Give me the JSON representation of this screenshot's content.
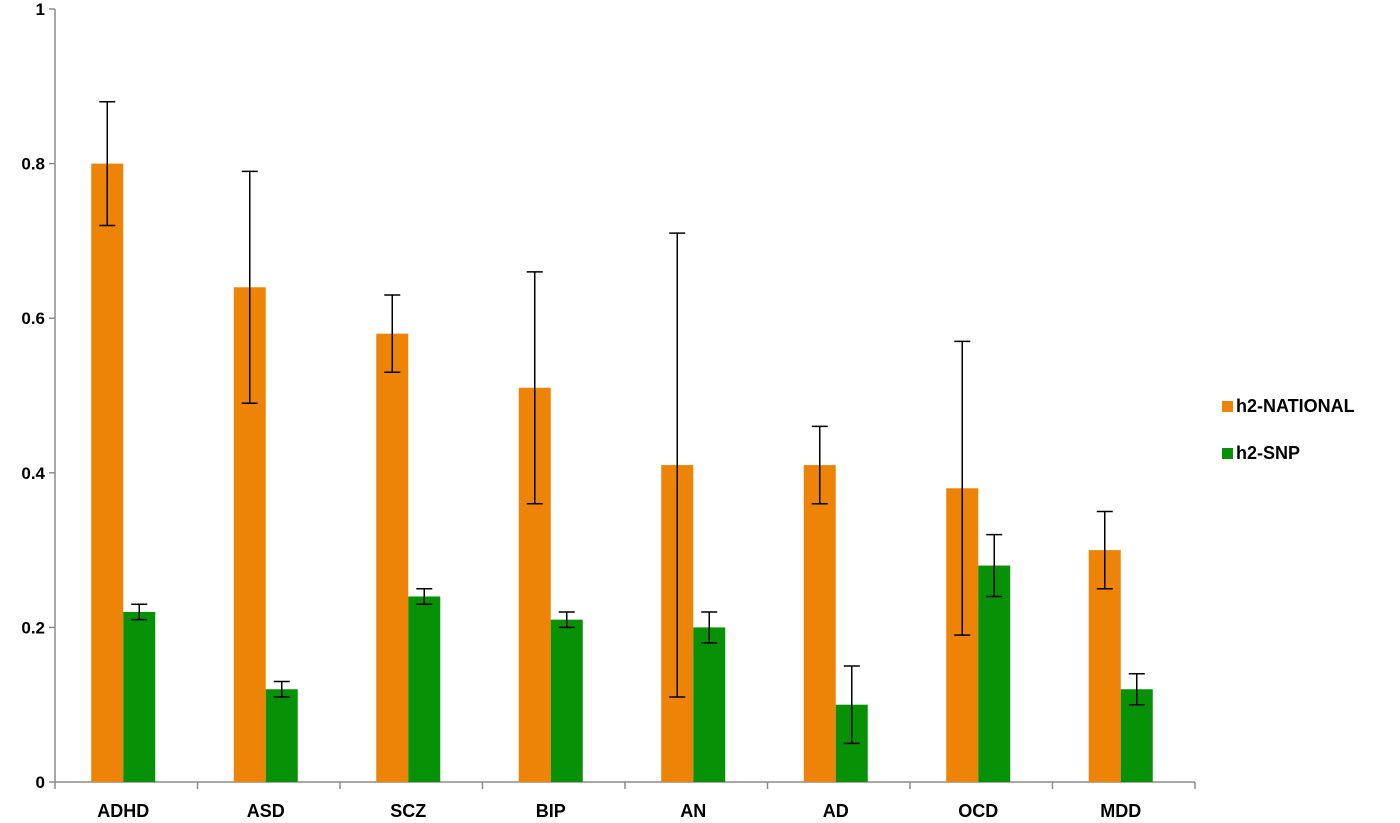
{
  "chart_data": {
    "type": "bar",
    "categories": [
      "ADHD",
      "ASD",
      "SCZ",
      "BIP",
      "AN",
      "AD",
      "OCD",
      "MDD"
    ],
    "series": [
      {
        "name": "h2-NATIONAL",
        "color": "#ED8307",
        "values": [
          0.8,
          0.64,
          0.58,
          0.51,
          0.41,
          0.41,
          0.38,
          0.3
        ],
        "err_low": [
          0.72,
          0.49,
          0.53,
          0.36,
          0.11,
          0.36,
          0.19,
          0.25
        ],
        "err_high": [
          0.88,
          0.79,
          0.63,
          0.66,
          0.71,
          0.46,
          0.57,
          0.35
        ]
      },
      {
        "name": "h2-SNP",
        "color": "#079107",
        "values": [
          0.22,
          0.12,
          0.24,
          0.21,
          0.2,
          0.1,
          0.28,
          0.12
        ],
        "err_low": [
          0.21,
          0.11,
          0.23,
          0.2,
          0.18,
          0.05,
          0.24,
          0.1
        ],
        "err_high": [
          0.23,
          0.13,
          0.25,
          0.22,
          0.22,
          0.15,
          0.32,
          0.14
        ]
      }
    ],
    "ylim": [
      0,
      1
    ],
    "yticks": [
      0,
      0.2,
      0.4,
      0.6,
      0.8,
      1
    ],
    "ytick_labels": [
      "0",
      "0.2",
      "0.4",
      "0.6",
      "0.8",
      "1"
    ],
    "legend_position": "right",
    "grid": false
  }
}
